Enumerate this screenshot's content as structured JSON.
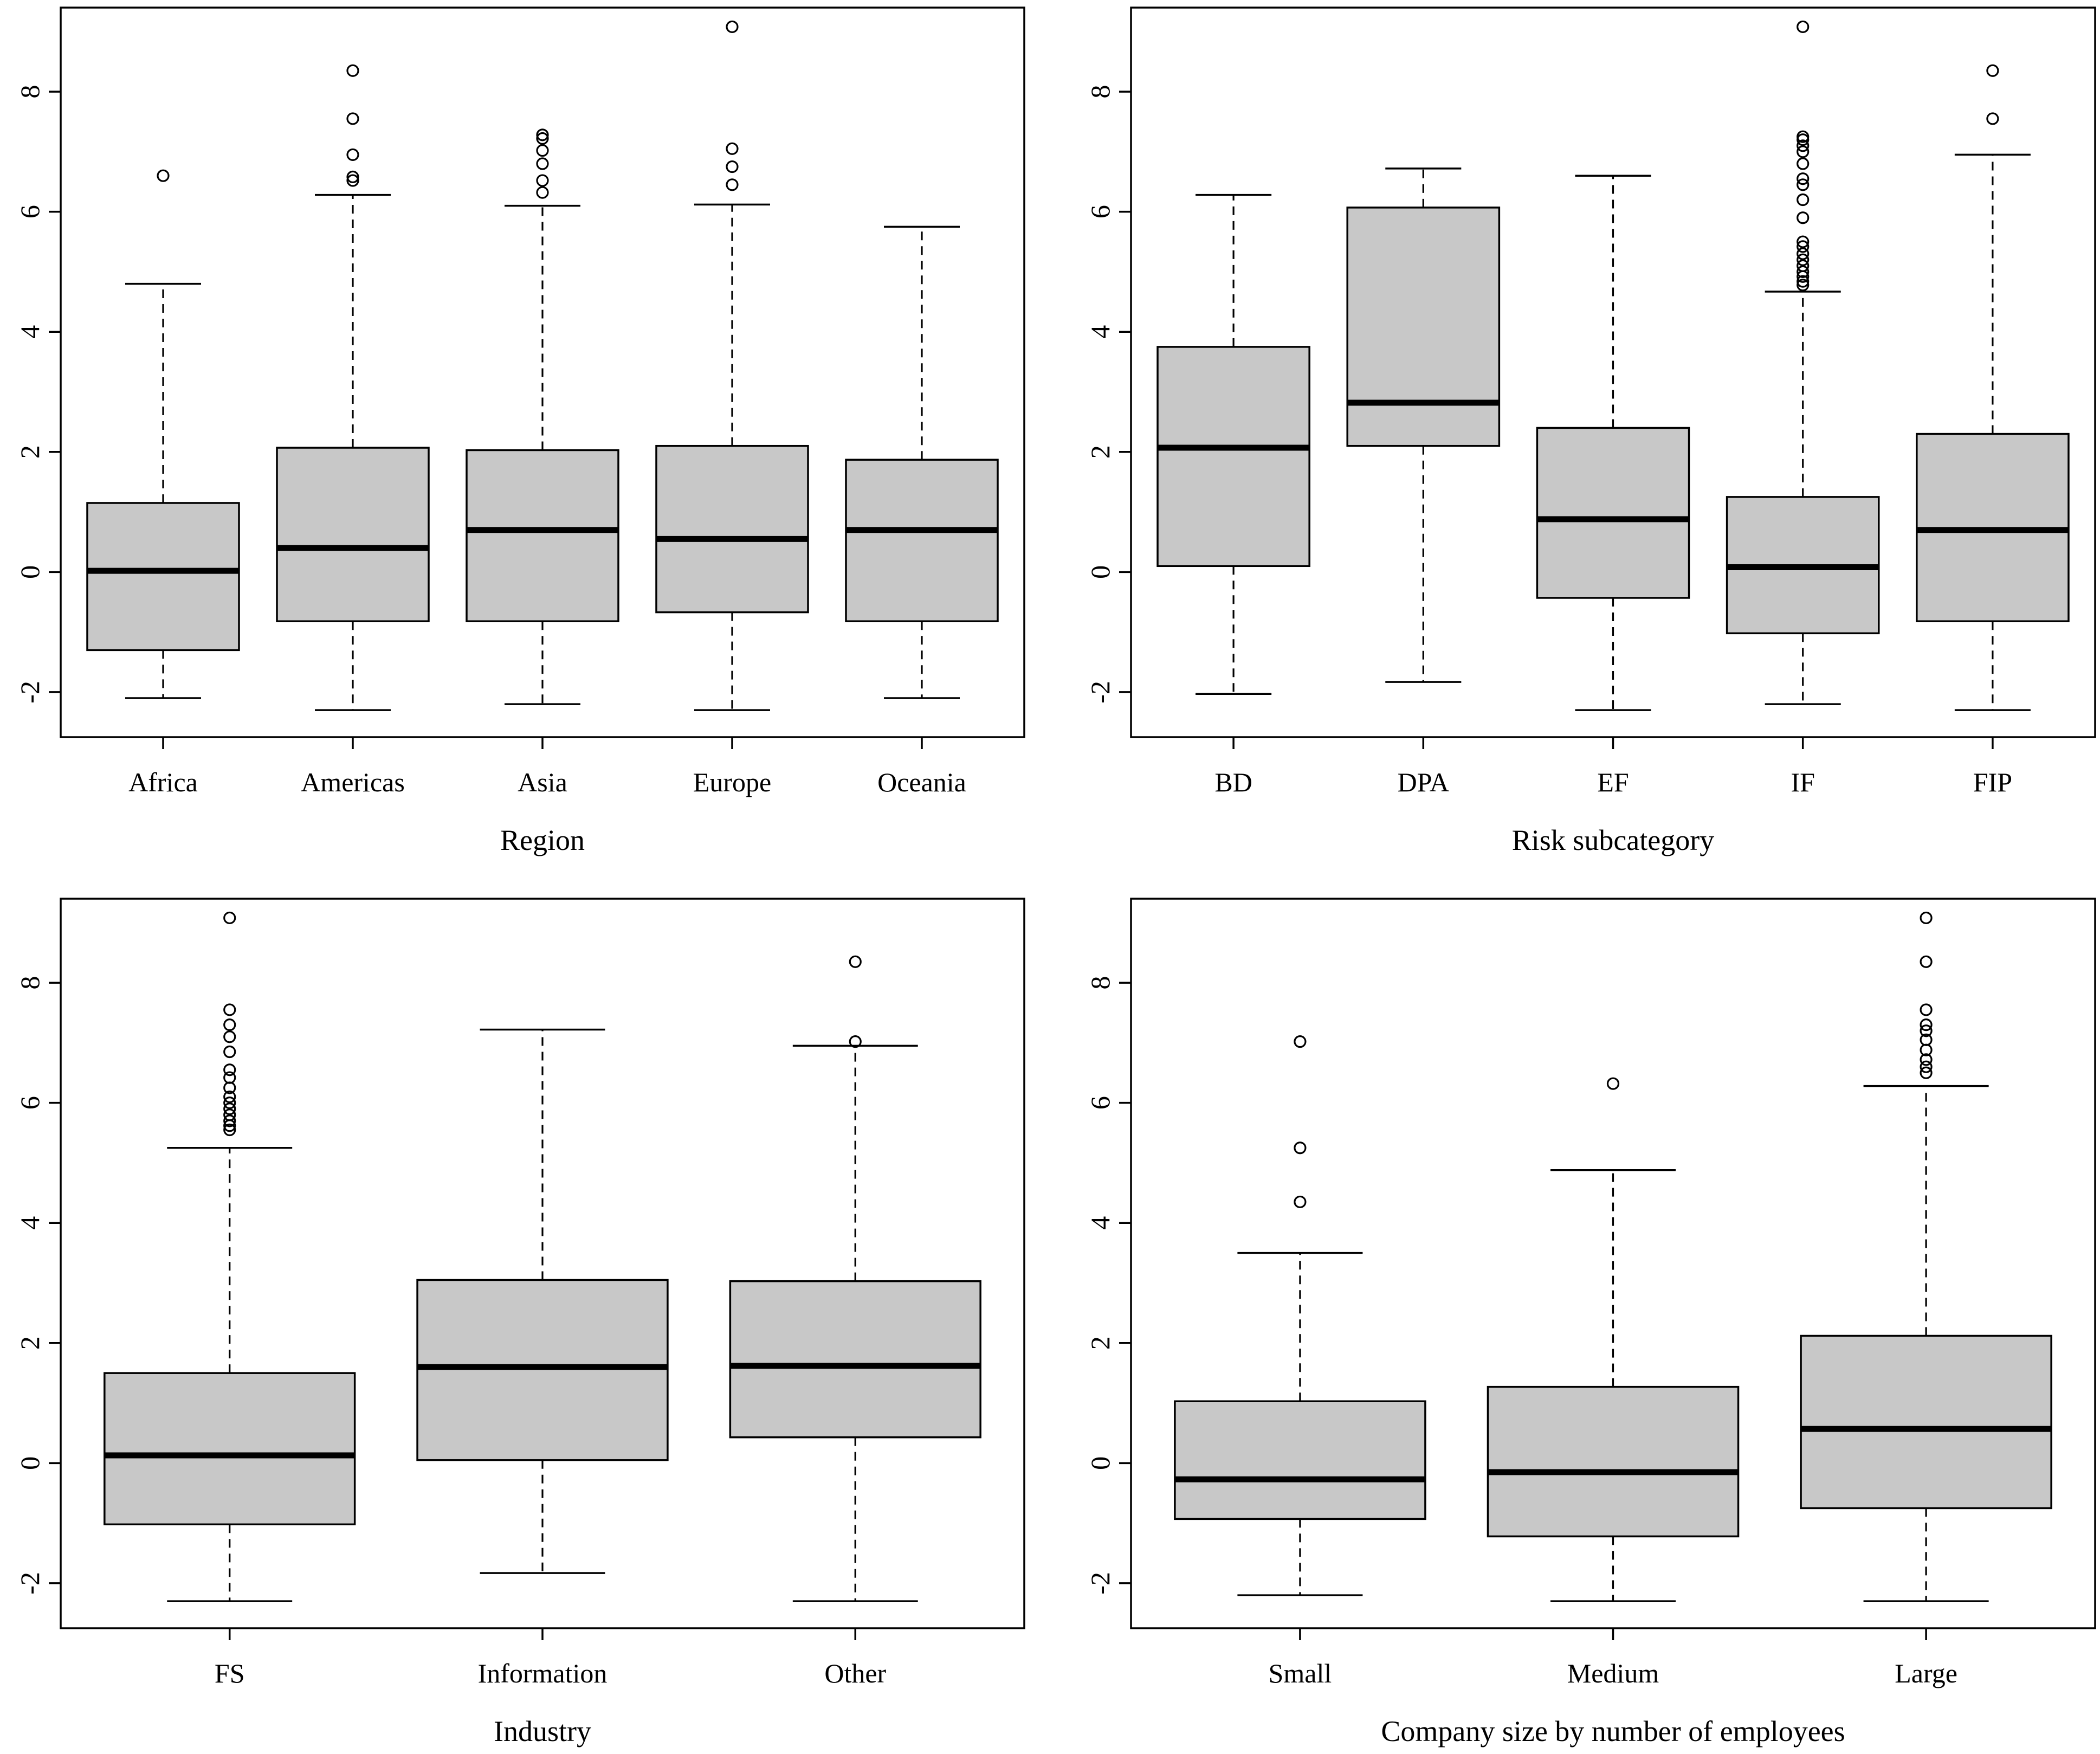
{
  "chart_data": [
    {
      "type": "boxplot",
      "xlabel": "Region",
      "ylabel": "",
      "ylim": [
        -2.75,
        9.4
      ],
      "yticks": [
        -2,
        0,
        2,
        4,
        6,
        8
      ],
      "categories": [
        "Africa",
        "Americas",
        "Asia",
        "Europe",
        "Oceania"
      ],
      "boxes": [
        {
          "low": -2.1,
          "q1": -1.3,
          "median": 0.02,
          "q3": 1.15,
          "high": 4.8,
          "outliers": [
            6.6
          ]
        },
        {
          "low": -2.3,
          "q1": -0.82,
          "median": 0.4,
          "q3": 2.07,
          "high": 6.28,
          "outliers": [
            6.52,
            6.58,
            6.95,
            7.55,
            8.35
          ]
        },
        {
          "low": -2.2,
          "q1": -0.82,
          "median": 0.7,
          "q3": 2.03,
          "high": 6.1,
          "outliers": [
            6.32,
            6.52,
            6.8,
            7.02,
            7.22,
            7.28
          ]
        },
        {
          "low": -2.3,
          "q1": -0.67,
          "median": 0.55,
          "q3": 2.1,
          "high": 6.12,
          "outliers": [
            6.45,
            6.75,
            7.05,
            9.08
          ]
        },
        {
          "low": -2.1,
          "q1": -0.82,
          "median": 0.7,
          "q3": 1.87,
          "high": 5.75,
          "outliers": []
        }
      ]
    },
    {
      "type": "boxplot",
      "xlabel": "Risk subcategory",
      "ylabel": "",
      "ylim": [
        -2.75,
        9.4
      ],
      "yticks": [
        -2,
        0,
        2,
        4,
        6,
        8
      ],
      "categories": [
        "BD",
        "DPA",
        "EF",
        "IF",
        "FIP"
      ],
      "boxes": [
        {
          "low": -2.03,
          "q1": 0.1,
          "median": 2.07,
          "q3": 3.75,
          "high": 6.28,
          "outliers": []
        },
        {
          "low": -1.83,
          "q1": 2.1,
          "median": 2.82,
          "q3": 6.07,
          "high": 6.72,
          "outliers": []
        },
        {
          "low": -2.3,
          "q1": -0.43,
          "median": 0.88,
          "q3": 2.4,
          "high": 6.6,
          "outliers": []
        },
        {
          "low": -2.2,
          "q1": -1.02,
          "median": 0.08,
          "q3": 1.25,
          "high": 4.67,
          "outliers": [
            4.78,
            4.84,
            4.92,
            5.0,
            5.1,
            5.2,
            5.3,
            5.42,
            5.5,
            5.9,
            6.2,
            6.45,
            6.55,
            6.8,
            7.0,
            7.1,
            7.2,
            7.25,
            9.08
          ]
        },
        {
          "low": -2.3,
          "q1": -0.82,
          "median": 0.7,
          "q3": 2.3,
          "high": 6.95,
          "outliers": [
            7.55,
            8.35
          ]
        }
      ]
    },
    {
      "type": "boxplot",
      "xlabel": "Industry",
      "ylabel": "",
      "ylim": [
        -2.75,
        9.4
      ],
      "yticks": [
        -2,
        0,
        2,
        4,
        6,
        8
      ],
      "categories": [
        "FS",
        "Information",
        "Other"
      ],
      "boxes": [
        {
          "low": -2.3,
          "q1": -1.02,
          "median": 0.13,
          "q3": 1.5,
          "high": 5.25,
          "outliers": [
            5.55,
            5.62,
            5.7,
            5.8,
            5.9,
            6.0,
            6.1,
            6.25,
            6.42,
            6.55,
            6.85,
            7.1,
            7.3,
            7.55,
            9.08
          ]
        },
        {
          "low": -1.83,
          "q1": 0.05,
          "median": 1.6,
          "q3": 3.05,
          "high": 7.22,
          "outliers": []
        },
        {
          "low": -2.3,
          "q1": 0.43,
          "median": 1.62,
          "q3": 3.03,
          "high": 6.95,
          "outliers": [
            7.02,
            8.35
          ]
        }
      ]
    },
    {
      "type": "boxplot",
      "xlabel": "Company size by number of employees",
      "ylabel": "",
      "ylim": [
        -2.75,
        9.4
      ],
      "yticks": [
        -2,
        0,
        2,
        4,
        6,
        8
      ],
      "categories": [
        "Small",
        "Medium",
        "Large"
      ],
      "boxes": [
        {
          "low": -2.2,
          "q1": -0.93,
          "median": -0.27,
          "q3": 1.03,
          "high": 3.5,
          "outliers": [
            4.35,
            5.25,
            7.02
          ]
        },
        {
          "low": -2.3,
          "q1": -1.22,
          "median": -0.15,
          "q3": 1.27,
          "high": 4.88,
          "outliers": [
            6.32
          ]
        },
        {
          "low": -2.3,
          "q1": -0.75,
          "median": 0.57,
          "q3": 2.12,
          "high": 6.28,
          "outliers": [
            6.5,
            6.6,
            6.72,
            6.88,
            7.05,
            7.2,
            7.3,
            7.55,
            8.35,
            9.08
          ]
        }
      ]
    }
  ]
}
